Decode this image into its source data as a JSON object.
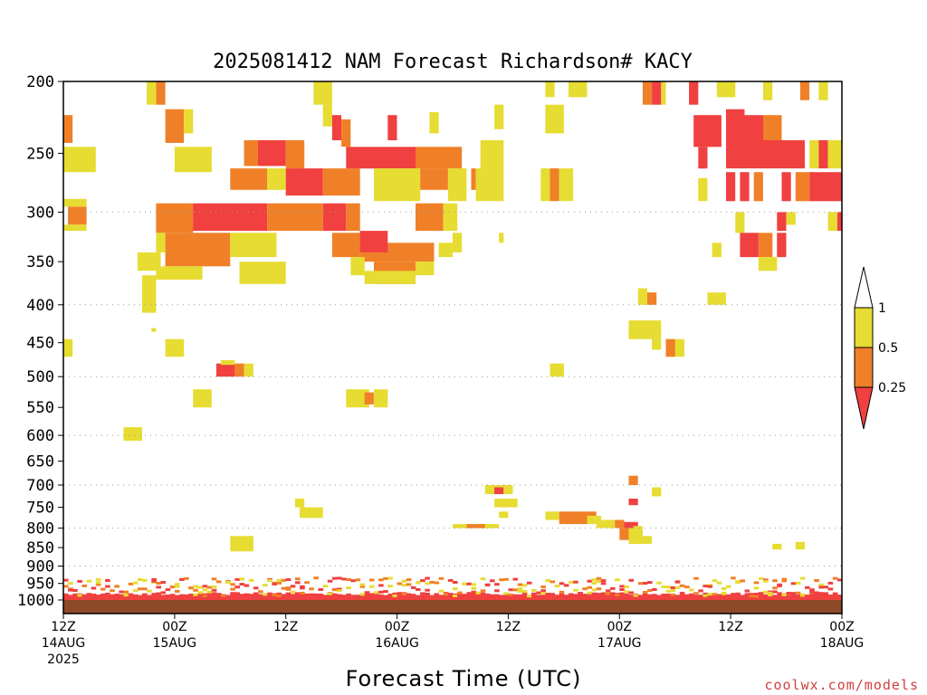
{
  "chart_data": {
    "type": "heatmap",
    "title": "2025081412 NAM Forecast Richardson# KACY",
    "xlabel": "Forecast Time (UTC)",
    "ylabel": "",
    "y_scale": "log-pressure (hPa, 1000 at bottom, 200 at top)",
    "ylim": [
      1000,
      200
    ],
    "xlim_hours": [
      0,
      84
    ],
    "y_ticks": [
      "200",
      "250",
      "300",
      "350",
      "400",
      "450",
      "500",
      "550",
      "600",
      "650",
      "700",
      "750",
      "800",
      "850",
      "900",
      "950",
      "1000"
    ],
    "gridlines_at": [
      300,
      400,
      500,
      600,
      700,
      800,
      900
    ],
    "x_ticks": [
      {
        "hour": 0,
        "lines": [
          "12Z",
          "14AUG",
          "2025"
        ]
      },
      {
        "hour": 12,
        "lines": [
          "00Z",
          "15AUG"
        ]
      },
      {
        "hour": 24,
        "lines": [
          "12Z"
        ]
      },
      {
        "hour": 36,
        "lines": [
          "00Z",
          "16AUG"
        ]
      },
      {
        "hour": 48,
        "lines": [
          "12Z"
        ]
      },
      {
        "hour": 60,
        "lines": [
          "00Z",
          "17AUG"
        ]
      },
      {
        "hour": 72,
        "lines": [
          "12Z"
        ]
      },
      {
        "hour": 84,
        "lines": [
          "00Z",
          "18AUG"
        ]
      }
    ],
    "colorbar": {
      "ticks": [
        "1",
        "0.5",
        "0.25"
      ],
      "bins": [
        {
          "range": "<0.25",
          "color": "#f04040"
        },
        {
          "range": "0.25-0.5",
          "color": "#f08028"
        },
        {
          "range": "0.5-1",
          "color": "#e6dc32"
        },
        {
          "range": ">1",
          "color": "#ffffff"
        }
      ]
    },
    "ground_color": "#8c4a28",
    "cells_note": "hour (forecast hour), p1/p2 (pressure hPa extent), level: 1=<0.25, 2=0.25-0.5, 3=0.5-1",
    "cells": [
      [
        9.0,
        10.0,
        200,
        215,
        3
      ],
      [
        10.0,
        11.0,
        200,
        215,
        2
      ],
      [
        27.0,
        29.0,
        200,
        215,
        3
      ],
      [
        52.0,
        53.0,
        200,
        210,
        3
      ],
      [
        54.5,
        56.5,
        200,
        210,
        3
      ],
      [
        62.5,
        63.5,
        200,
        215,
        2
      ],
      [
        63.5,
        64.5,
        200,
        215,
        1
      ],
      [
        64.5,
        65.0,
        200,
        215,
        3
      ],
      [
        67.5,
        68.5,
        200,
        215,
        1
      ],
      [
        70.5,
        72.5,
        200,
        210,
        3
      ],
      [
        75.5,
        76.5,
        200,
        212,
        3
      ],
      [
        79.5,
        80.5,
        200,
        212,
        2
      ],
      [
        81.5,
        82.5,
        200,
        212,
        3
      ],
      [
        11.0,
        13.0,
        218,
        242,
        2
      ],
      [
        13.0,
        14.0,
        218,
        235,
        3
      ],
      [
        28.0,
        29.0,
        215,
        230,
        3
      ],
      [
        29.0,
        30.0,
        222,
        240,
        1
      ],
      [
        30.0,
        31.0,
        225,
        245,
        2
      ],
      [
        35.0,
        36.0,
        222,
        240,
        1
      ],
      [
        39.5,
        40.5,
        220,
        235,
        3
      ],
      [
        46.5,
        47.5,
        215,
        232,
        3
      ],
      [
        52.0,
        54.0,
        215,
        235,
        3
      ],
      [
        68.0,
        71.0,
        222,
        245,
        1
      ],
      [
        71.5,
        73.5,
        218,
        245,
        1
      ],
      [
        73.5,
        75.5,
        222,
        245,
        1
      ],
      [
        75.5,
        77.5,
        222,
        240,
        2
      ],
      [
        0.0,
        1.0,
        222,
        242,
        2
      ],
      [
        0.0,
        3.5,
        245,
        265,
        3
      ],
      [
        12.0,
        16.0,
        245,
        265,
        3
      ],
      [
        19.5,
        21.0,
        240,
        260,
        2
      ],
      [
        21.0,
        24.0,
        240,
        260,
        1
      ],
      [
        24.0,
        26.0,
        240,
        262,
        2
      ],
      [
        30.5,
        38.0,
        245,
        262,
        1
      ],
      [
        38.0,
        43.0,
        245,
        262,
        2
      ],
      [
        45.0,
        47.5,
        240,
        265,
        3
      ],
      [
        68.5,
        69.5,
        245,
        262,
        1
      ],
      [
        71.5,
        80.0,
        240,
        262,
        1
      ],
      [
        80.5,
        81.5,
        240,
        262,
        3
      ],
      [
        81.5,
        82.5,
        240,
        262,
        1
      ],
      [
        82.5,
        84.0,
        240,
        262,
        3
      ],
      [
        18.0,
        22.0,
        262,
        280,
        2
      ],
      [
        22.0,
        24.0,
        262,
        280,
        3
      ],
      [
        24.0,
        28.0,
        262,
        285,
        1
      ],
      [
        28.0,
        32.0,
        262,
        285,
        2
      ],
      [
        33.5,
        38.5,
        262,
        290,
        3
      ],
      [
        38.5,
        41.5,
        262,
        280,
        2
      ],
      [
        41.5,
        43.5,
        262,
        290,
        3
      ],
      [
        44.0,
        44.5,
        262,
        280,
        2
      ],
      [
        44.5,
        47.5,
        262,
        290,
        3
      ],
      [
        51.5,
        52.5,
        262,
        290,
        3
      ],
      [
        52.5,
        53.5,
        262,
        290,
        2
      ],
      [
        53.5,
        55.0,
        262,
        290,
        3
      ],
      [
        68.5,
        69.5,
        270,
        290,
        3
      ],
      [
        71.5,
        72.5,
        265,
        290,
        1
      ],
      [
        73.0,
        74.0,
        265,
        290,
        1
      ],
      [
        74.5,
        75.5,
        265,
        290,
        2
      ],
      [
        77.5,
        78.5,
        265,
        290,
        1
      ],
      [
        79.0,
        80.5,
        265,
        290,
        2
      ],
      [
        80.5,
        82.0,
        265,
        290,
        1
      ],
      [
        82.0,
        84.0,
        265,
        290,
        1
      ],
      [
        0.0,
        2.5,
        288,
        295,
        3
      ],
      [
        0.5,
        2.5,
        295,
        312,
        2
      ],
      [
        0.0,
        2.5,
        312,
        318,
        3
      ],
      [
        10.0,
        14.0,
        292,
        320,
        2
      ],
      [
        14.0,
        22.0,
        292,
        318,
        1
      ],
      [
        22.0,
        28.0,
        292,
        318,
        2
      ],
      [
        28.0,
        30.5,
        292,
        318,
        1
      ],
      [
        30.5,
        32.0,
        292,
        318,
        2
      ],
      [
        38.0,
        41.0,
        292,
        318,
        2
      ],
      [
        41.0,
        42.5,
        292,
        318,
        3
      ],
      [
        72.5,
        73.5,
        300,
        320,
        3
      ],
      [
        77.0,
        78.0,
        300,
        318,
        1
      ],
      [
        78.0,
        79.0,
        300,
        312,
        3
      ],
      [
        82.5,
        83.5,
        300,
        318,
        3
      ],
      [
        83.5,
        84.0,
        300,
        318,
        1
      ],
      [
        10.0,
        11.0,
        320,
        340,
        3
      ],
      [
        11.0,
        18.0,
        320,
        355,
        2
      ],
      [
        18.0,
        23.0,
        320,
        345,
        3
      ],
      [
        29.0,
        32.0,
        320,
        345,
        2
      ],
      [
        32.0,
        40.0,
        330,
        350,
        2
      ],
      [
        32.0,
        35.0,
        318,
        340,
        1
      ],
      [
        40.5,
        42.0,
        330,
        345,
        3
      ],
      [
        42.0,
        43.0,
        320,
        340,
        3
      ],
      [
        47.0,
        47.5,
        320,
        330,
        3
      ],
      [
        73.0,
        75.0,
        320,
        345,
        1
      ],
      [
        75.0,
        76.5,
        320,
        345,
        2
      ],
      [
        77.0,
        78.0,
        320,
        345,
        1
      ],
      [
        70.0,
        71.0,
        330,
        345,
        3
      ],
      [
        10.0,
        15.0,
        355,
        370,
        3
      ],
      [
        19.0,
        24.0,
        350,
        375,
        3
      ],
      [
        31.0,
        32.5,
        345,
        365,
        3
      ],
      [
        33.5,
        38.0,
        350,
        375,
        2
      ],
      [
        38.0,
        40.0,
        350,
        365,
        3
      ],
      [
        8.0,
        10.5,
        340,
        360,
        3
      ],
      [
        75.0,
        76.0,
        345,
        360,
        3
      ],
      [
        76.0,
        77.0,
        345,
        360,
        3
      ],
      [
        8.5,
        10.0,
        365,
        410,
        3
      ],
      [
        32.5,
        38.0,
        360,
        375,
        3
      ],
      [
        63.0,
        64.0,
        385,
        400,
        2
      ],
      [
        62.0,
        63.0,
        380,
        400,
        3
      ],
      [
        69.5,
        71.5,
        385,
        400,
        3
      ],
      [
        61.0,
        64.5,
        420,
        445,
        3
      ],
      [
        63.5,
        64.5,
        445,
        460,
        3
      ],
      [
        65.0,
        67.0,
        445,
        470,
        3
      ],
      [
        65.0,
        66.0,
        445,
        470,
        2
      ],
      [
        0.0,
        1.0,
        445,
        470,
        3
      ],
      [
        9.5,
        10.0,
        430,
        435,
        3
      ],
      [
        11.0,
        13.0,
        445,
        470,
        3
      ],
      [
        16.5,
        18.5,
        480,
        500,
        1
      ],
      [
        18.5,
        19.5,
        480,
        500,
        2
      ],
      [
        19.5,
        20.5,
        480,
        500,
        3
      ],
      [
        17.0,
        18.5,
        475,
        482,
        3
      ],
      [
        52.5,
        54.0,
        480,
        500,
        3
      ],
      [
        14.0,
        16.0,
        520,
        550,
        3
      ],
      [
        30.5,
        33.0,
        520,
        550,
        3
      ],
      [
        32.5,
        33.5,
        525,
        545,
        2
      ],
      [
        33.5,
        35.0,
        520,
        550,
        3
      ],
      [
        6.5,
        8.5,
        585,
        610,
        3
      ],
      [
        61.0,
        62.0,
        680,
        700,
        2
      ],
      [
        63.5,
        64.5,
        705,
        725,
        3
      ],
      [
        45.5,
        47.5,
        700,
        720,
        3
      ],
      [
        46.5,
        47.5,
        705,
        720,
        1
      ],
      [
        47.5,
        48.5,
        700,
        720,
        3
      ],
      [
        46.5,
        49.0,
        730,
        750,
        3
      ],
      [
        61.0,
        62.0,
        730,
        745,
        1
      ],
      [
        25.0,
        26.0,
        730,
        750,
        3
      ],
      [
        25.5,
        28.0,
        750,
        775,
        3
      ],
      [
        47.0,
        48.0,
        760,
        775,
        3
      ],
      [
        52.0,
        53.5,
        760,
        780,
        3
      ],
      [
        53.5,
        57.5,
        760,
        790,
        2
      ],
      [
        56.5,
        58.0,
        770,
        790,
        3
      ],
      [
        57.5,
        59.5,
        780,
        800,
        3
      ],
      [
        59.5,
        60.5,
        780,
        800,
        2
      ],
      [
        60.5,
        62.0,
        785,
        800,
        1
      ],
      [
        61.5,
        62.5,
        795,
        815,
        3
      ],
      [
        42.0,
        47.0,
        790,
        800,
        3
      ],
      [
        43.5,
        45.5,
        790,
        800,
        2
      ],
      [
        45.5,
        46.0,
        790,
        800,
        3
      ],
      [
        18.0,
        20.5,
        820,
        860,
        3
      ],
      [
        60.0,
        61.0,
        800,
        830,
        2
      ],
      [
        61.0,
        62.5,
        800,
        840,
        3
      ],
      [
        62.5,
        63.5,
        820,
        840,
        3
      ],
      [
        76.5,
        77.5,
        840,
        855,
        3
      ],
      [
        79.0,
        80.0,
        835,
        855,
        3
      ]
    ]
  }
}
